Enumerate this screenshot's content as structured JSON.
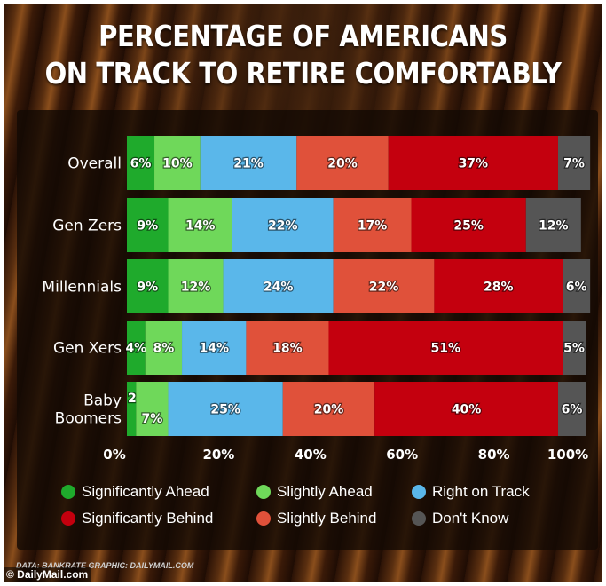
{
  "title_line1": "PERCENTAGE OF AMERICANS",
  "title_line2": "ON TRACK TO RETIRE COMFORTABLY",
  "source_text": "DATA: BANKRATE   GRAPHIC: DAILYMAIL.COM",
  "brand_text": "© DailyMail.com",
  "chart_data": {
    "type": "bar",
    "orientation": "horizontal",
    "stacked": true,
    "categories": [
      "Overall",
      "Gen Zers",
      "Millennials",
      "Gen Xers",
      "Baby Boomers"
    ],
    "series": [
      {
        "name": "Significantly Ahead",
        "color": "#1faa2c",
        "values": [
          6,
          9,
          9,
          4,
          2
        ]
      },
      {
        "name": "Slightly Ahead",
        "color": "#6fd85a",
        "values": [
          10,
          14,
          12,
          8,
          7
        ]
      },
      {
        "name": "Right on Track",
        "color": "#5ab7ea",
        "values": [
          21,
          22,
          24,
          14,
          25
        ]
      },
      {
        "name": "Slightly Behind",
        "color": "#e0513a",
        "values": [
          20,
          17,
          22,
          18,
          20
        ]
      },
      {
        "name": "Significantly Behind",
        "color": "#c4000e",
        "values": [
          37,
          25,
          28,
          51,
          40
        ]
      },
      {
        "name": "Don't Know",
        "color": "#555555",
        "values": [
          7,
          12,
          6,
          5,
          6
        ]
      }
    ],
    "xlim": [
      0,
      100
    ],
    "xticks": [
      "0%",
      "20%",
      "40%",
      "60%",
      "80%",
      "100%"
    ],
    "legend_order": [
      "Significantly Ahead",
      "Slightly Ahead",
      "Right on Track",
      "Significantly Behind",
      "Slightly Behind",
      "Don't Know"
    ],
    "legend_position": "bottom",
    "grid": false
  }
}
